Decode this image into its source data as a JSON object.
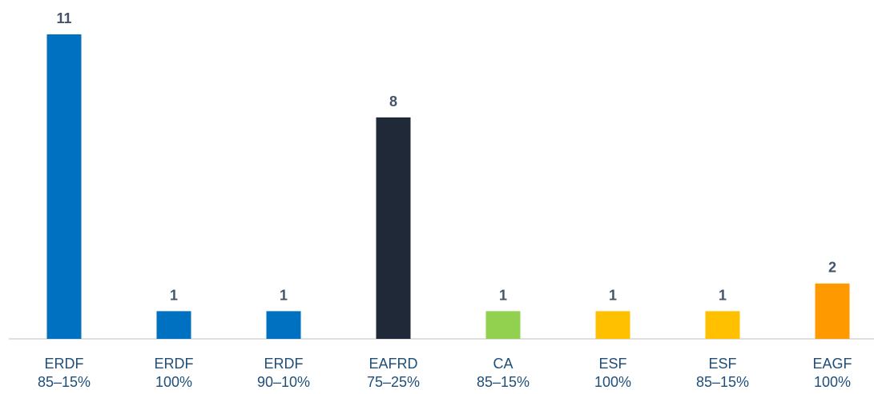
{
  "chart_data": {
    "type": "bar",
    "categories": [
      [
        "ERDF",
        "85–15%"
      ],
      [
        "ERDF",
        "100%"
      ],
      [
        "ERDF",
        "90–10%"
      ],
      [
        "EAFRD",
        "75–25%"
      ],
      [
        "CA",
        "85–15%"
      ],
      [
        "ESF",
        "100%"
      ],
      [
        "ESF",
        "85–15%"
      ],
      [
        "EAGF",
        "100%"
      ]
    ],
    "values": [
      11,
      1,
      1,
      8,
      1,
      1,
      1,
      2
    ],
    "colors": [
      "#0070c0",
      "#0070c0",
      "#0070c0",
      "#1f2937",
      "#92d050",
      "#ffc000",
      "#ffc000",
      "#ff9900"
    ],
    "ylim": [
      0,
      11
    ]
  }
}
